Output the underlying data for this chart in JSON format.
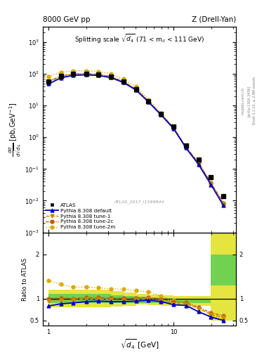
{
  "title_left": "8000 GeV pp",
  "title_right": "Z (Drell-Yan)",
  "plot_title": "Splitting scale $\\sqrt{d_4}$ (71 < m$_{ll}$ < 111 GeV)",
  "xlabel": "sqrt{d_4} [GeV]",
  "ylabel_main": "d$\\sigma$/dsqrt[$\\overline{d_4}$] [pb,GeV$^{-1}$]",
  "ylabel_ratio": "Ratio to ATLAS",
  "watermark": "ATLAS_2017_I1599844",
  "rivet_text": "Rivet 3.1.10, ≥ 2.8M events",
  "arxiv_text": "[arXiv:1306.3436]",
  "mcplots_text": "mcplots.cern.ch",
  "x_data": [
    1.0,
    1.26,
    1.58,
    2.0,
    2.51,
    3.16,
    3.98,
    5.01,
    6.31,
    7.94,
    10.0,
    12.59,
    15.85,
    19.95,
    25.12
  ],
  "atlas_y": [
    58.0,
    85.0,
    100.0,
    100.0,
    95.0,
    82.0,
    57.0,
    33.0,
    13.5,
    5.5,
    2.2,
    0.55,
    0.2,
    0.055,
    0.014
  ],
  "atlas_yerr_lo": [
    4.0,
    4.0,
    3.0,
    3.0,
    3.0,
    3.0,
    3.0,
    2.0,
    1.0,
    0.3,
    0.15,
    0.04,
    0.02,
    0.005,
    0.002
  ],
  "atlas_yerr_hi": [
    4.0,
    4.0,
    3.0,
    3.0,
    3.0,
    3.0,
    3.0,
    2.0,
    1.0,
    0.3,
    0.15,
    0.04,
    0.02,
    0.005,
    0.002
  ],
  "pythia_default_y": [
    48.0,
    75.0,
    90.0,
    93.0,
    89.0,
    76.0,
    53.0,
    31.0,
    13.0,
    5.1,
    1.9,
    0.46,
    0.14,
    0.032,
    0.007
  ],
  "pythia_tune1_y": [
    55.0,
    82.0,
    97.0,
    99.0,
    94.0,
    80.0,
    55.0,
    32.0,
    13.3,
    5.2,
    1.95,
    0.48,
    0.155,
    0.035,
    0.008
  ],
  "pythia_tune2c_y": [
    58.0,
    86.0,
    100.0,
    102.0,
    97.0,
    83.0,
    57.5,
    33.5,
    13.8,
    5.4,
    2.05,
    0.5,
    0.16,
    0.037,
    0.0085
  ],
  "pythia_tune2m_y": [
    82.0,
    112.0,
    126.0,
    126.0,
    118.0,
    100.0,
    69.0,
    39.0,
    15.5,
    5.8,
    2.1,
    0.48,
    0.14,
    0.033,
    0.0075
  ],
  "ratio_default": [
    0.83,
    0.88,
    0.9,
    0.93,
    0.94,
    0.93,
    0.93,
    0.94,
    0.96,
    0.93,
    0.86,
    0.84,
    0.7,
    0.58,
    0.5
  ],
  "ratio_tune1": [
    0.95,
    0.965,
    0.97,
    0.99,
    0.99,
    0.976,
    0.965,
    0.97,
    0.985,
    0.945,
    0.886,
    0.873,
    0.775,
    0.636,
    0.571
  ],
  "ratio_tune2c": [
    1.0,
    1.01,
    1.0,
    1.02,
    1.02,
    1.012,
    1.009,
    1.015,
    1.022,
    0.982,
    0.932,
    0.909,
    0.8,
    0.673,
    0.607
  ],
  "ratio_tune2m": [
    1.41,
    1.32,
    1.26,
    1.26,
    1.242,
    1.22,
    1.21,
    1.18,
    1.148,
    1.055,
    0.955,
    0.873,
    0.7,
    0.6,
    0.536
  ],
  "x_band_edges": [
    1.0,
    1.26,
    1.58,
    2.0,
    2.51,
    3.16,
    3.98,
    5.01,
    6.31,
    7.94,
    10.0,
    12.59,
    15.85,
    19.95,
    25.12,
    31.62
  ],
  "band_green_lo": [
    0.9,
    0.9,
    0.9,
    0.9,
    0.9,
    0.9,
    0.9,
    0.9,
    0.9,
    0.9,
    0.9,
    0.9,
    0.9,
    1.3,
    1.3
  ],
  "band_green_hi": [
    1.1,
    1.1,
    1.1,
    1.1,
    1.1,
    1.08,
    1.06,
    1.04,
    1.02,
    1.01,
    1.0,
    1.0,
    1.0,
    2.0,
    2.0
  ],
  "band_yellow_lo": [
    0.8,
    0.8,
    0.8,
    0.8,
    0.8,
    0.82,
    0.84,
    0.86,
    0.85,
    0.83,
    0.83,
    0.83,
    0.83,
    0.5,
    0.5
  ],
  "band_yellow_hi": [
    1.2,
    1.2,
    1.2,
    1.2,
    1.2,
    1.17,
    1.14,
    1.11,
    1.09,
    1.07,
    1.06,
    1.05,
    1.05,
    2.5,
    2.5
  ],
  "color_atlas": "#000000",
  "color_default": "#0000cc",
  "color_tune1": "#cc8800",
  "color_tune2c": "#cc5500",
  "color_tune2m": "#ddaa00",
  "color_green_band": "#55cc55",
  "color_yellow_band": "#dddd00",
  "xlim": [
    0.9,
    31.62
  ],
  "ylim_main": [
    0.001,
    3000.0
  ],
  "ylim_ratio": [
    0.38,
    2.5
  ],
  "fig_width": 3.93,
  "fig_height": 5.12
}
